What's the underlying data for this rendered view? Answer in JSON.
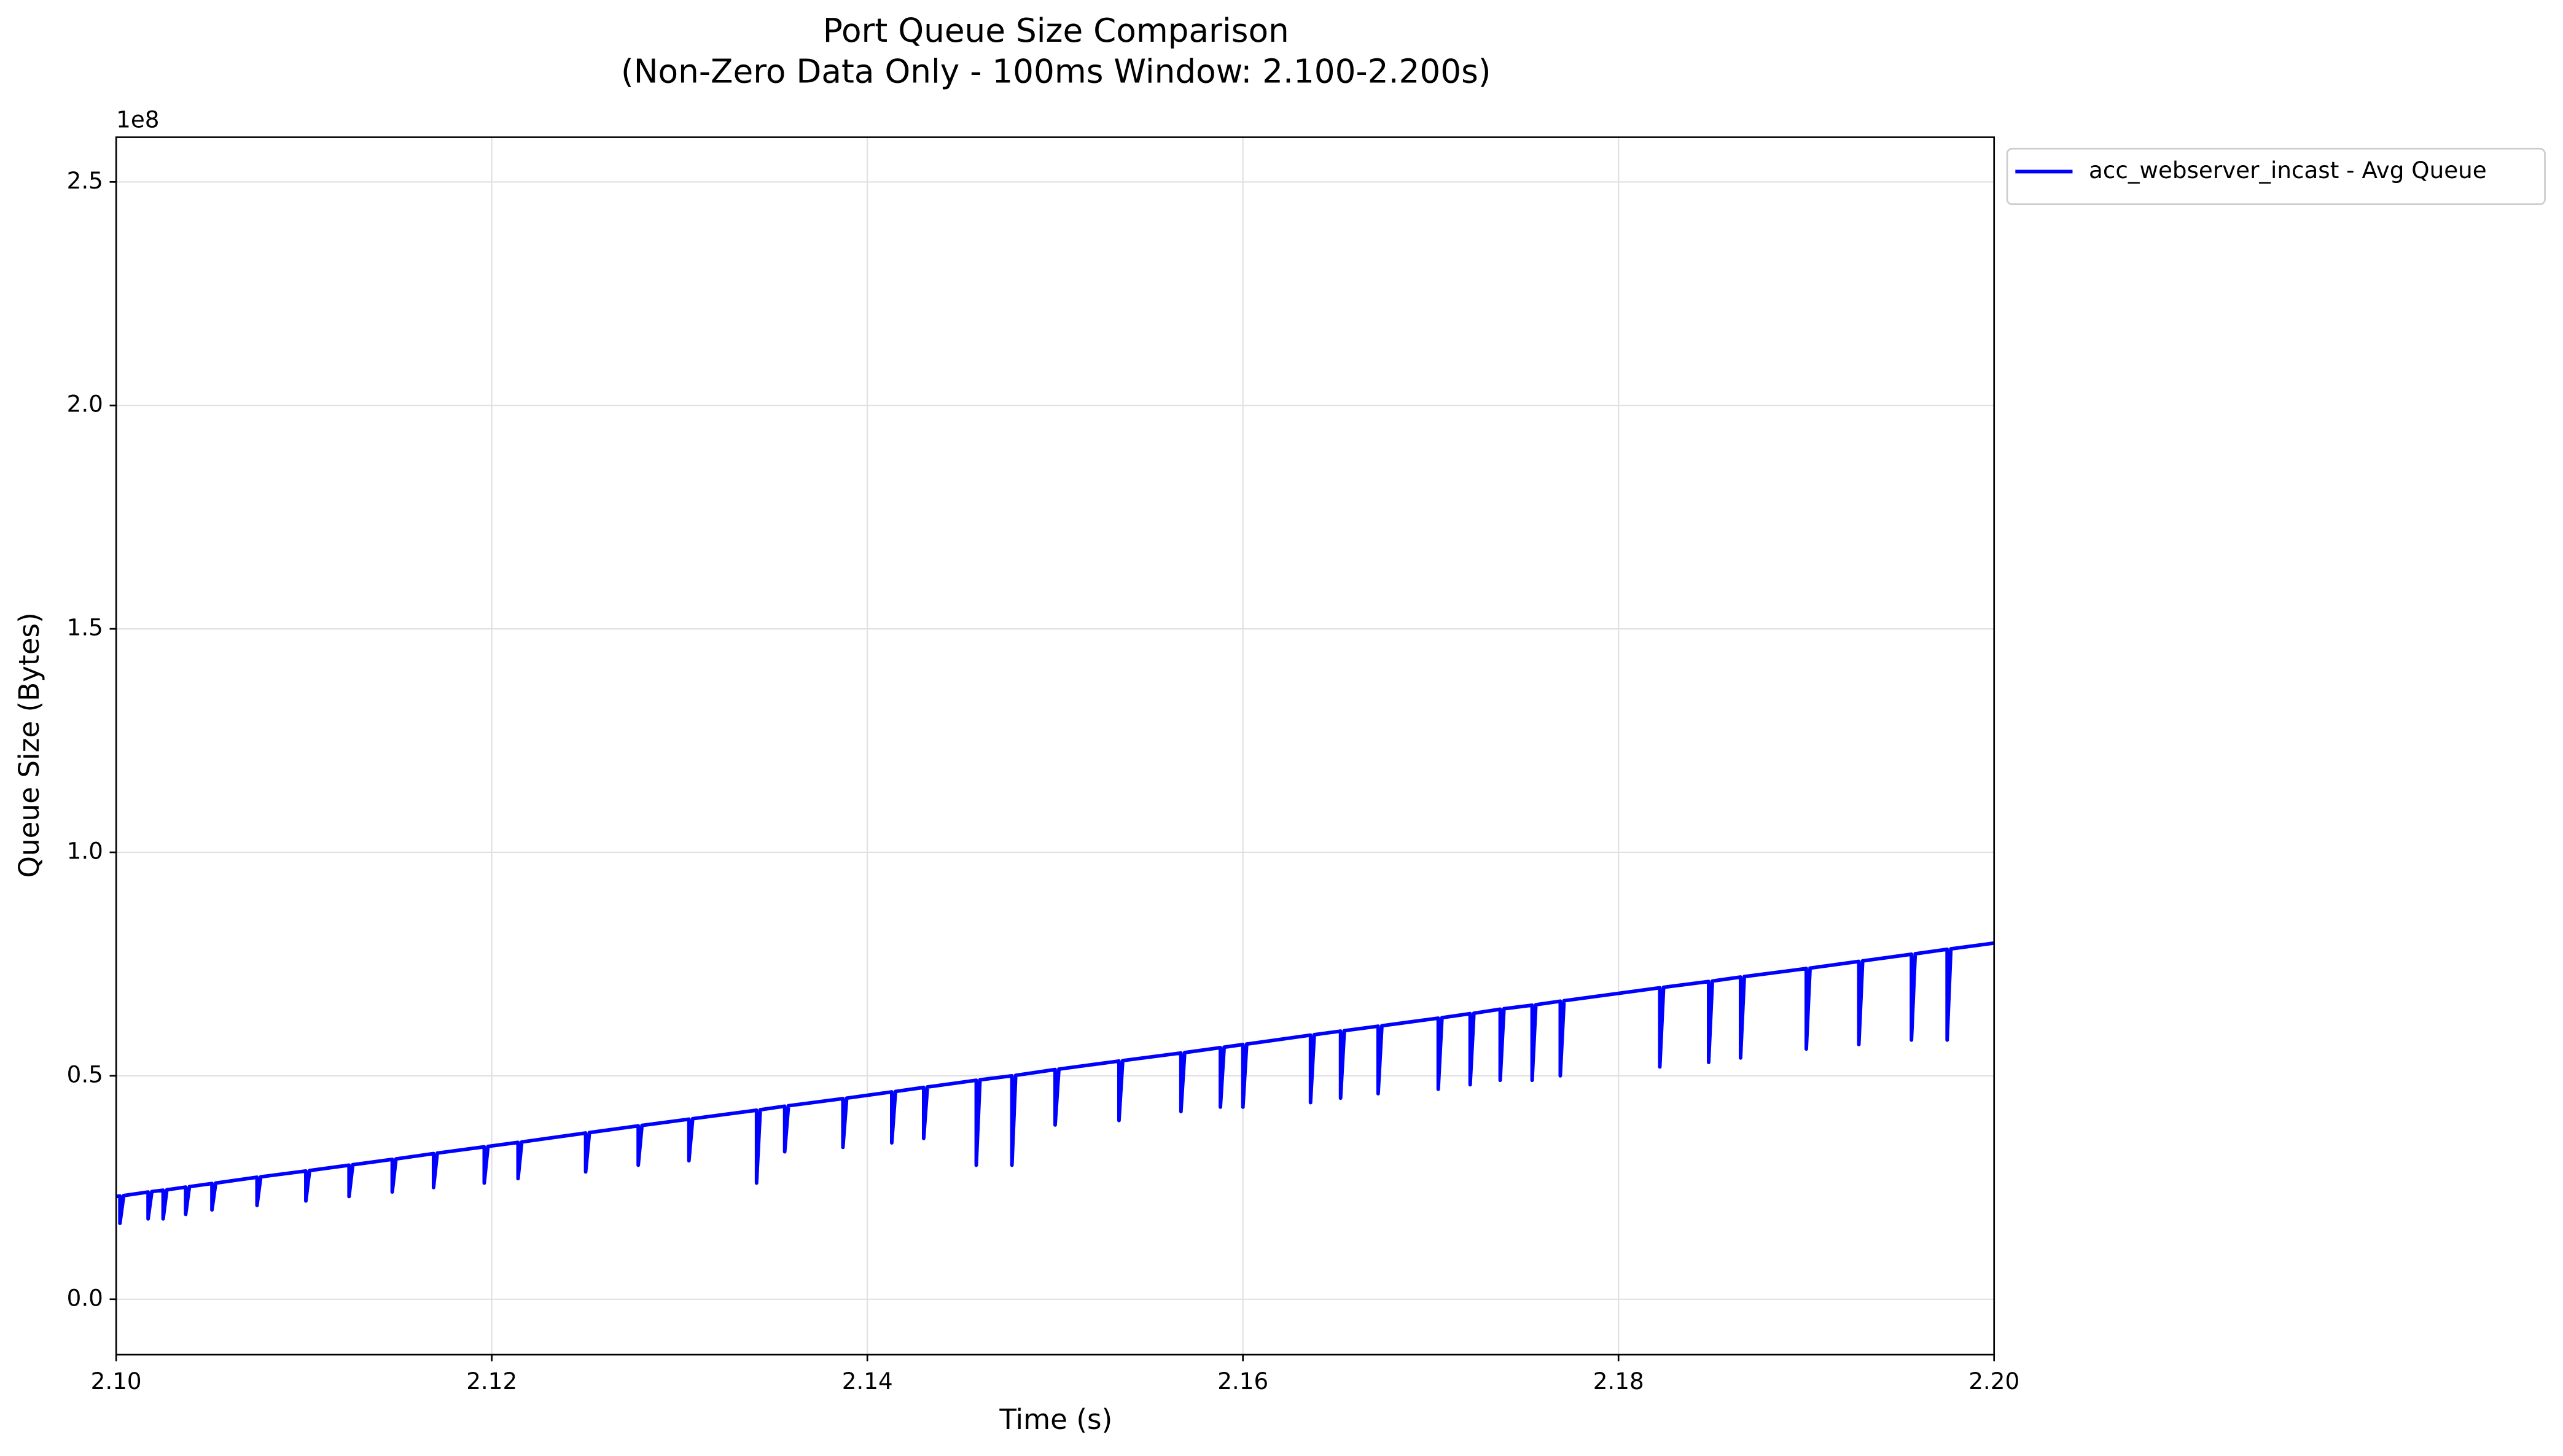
{
  "chart_data": {
    "type": "line",
    "title": "Port Queue Size Comparison",
    "subtitle": "(Non-Zero Data Only - 100ms Window: 2.100-2.200s)",
    "x_label": "Time (s)",
    "y_label": "Queue Size (Bytes)",
    "y_offset_label": "1e8",
    "xlim": [
      2.1,
      2.2
    ],
    "xticks": [
      {
        "value": 2.1,
        "label": "2.10"
      },
      2.12,
      2.14,
      2.16,
      2.18,
      {
        "value": 2.2,
        "label": "2.20"
      }
    ],
    "ylim": [
      -12400000,
      260000000
    ],
    "yticks": [
      {
        "value": 0,
        "label": "0.0"
      },
      {
        "value": 50000000,
        "label": "0.5"
      },
      {
        "value": 100000000,
        "label": "1.0"
      },
      {
        "value": 150000000,
        "label": "1.5"
      },
      {
        "value": 200000000,
        "label": "2.0"
      },
      {
        "value": 250000000,
        "label": "2.5"
      }
    ],
    "grid": true,
    "legend": "outside-right",
    "x": [
      2.1,
      2.1002,
      2.1002,
      2.1004,
      2.1017,
      2.1017,
      2.1019,
      2.1025,
      2.1025,
      2.1027,
      2.1037,
      2.1037,
      2.1039,
      2.1051,
      2.1051,
      2.1053,
      2.1075,
      2.1075,
      2.1077,
      2.1101,
      2.1101,
      2.1103,
      2.1124,
      2.1124,
      2.1126,
      2.1147,
      2.1147,
      2.1149,
      2.1169,
      2.1169,
      2.1171,
      2.1196,
      2.1196,
      2.1198,
      2.1214,
      2.1214,
      2.1216,
      2.125,
      2.125,
      2.1252,
      2.1278,
      2.1278,
      2.128,
      2.1305,
      2.1305,
      2.1307,
      2.1341,
      2.1341,
      2.1343,
      2.1356,
      2.1356,
      2.1358,
      2.1387,
      2.1387,
      2.1389,
      2.1413,
      2.1413,
      2.1415,
      2.143,
      2.143,
      2.1432,
      2.1458,
      2.1458,
      2.146,
      2.1477,
      2.1477,
      2.1479,
      2.15,
      2.15,
      2.1502,
      2.1534,
      2.1534,
      2.1536,
      2.1567,
      2.1567,
      2.1569,
      2.1588,
      2.1588,
      2.159,
      2.16,
      2.16,
      2.1602,
      2.1636,
      2.1636,
      2.1638,
      2.1652,
      2.1652,
      2.1654,
      2.1672,
      2.1672,
      2.1674,
      2.1704,
      2.1704,
      2.1706,
      2.1721,
      2.1721,
      2.1723,
      2.1737,
      2.1737,
      2.1739,
      2.1754,
      2.1754,
      2.1756,
      2.1769,
      2.1769,
      2.1771,
      2.1822,
      2.1822,
      2.1824,
      2.1848,
      2.1848,
      2.185,
      2.1865,
      2.1865,
      2.1867,
      2.19,
      2.19,
      2.1902,
      2.1928,
      2.1928,
      2.193,
      2.1956,
      2.1956,
      2.1958,
      2.1975,
      2.1975,
      2.1977,
      2.2
    ],
    "series": [
      {
        "name": "acc_webserver_incast - Avg Queue",
        "color": "#0000ff",
        "values": [
          23000000,
          23100000,
          17000000,
          23200000,
          24000000,
          18000000,
          24100000,
          24400000,
          18000000,
          24500000,
          25100000,
          19000000,
          25200000,
          25900000,
          20000000,
          26000000,
          27300000,
          21000000,
          27400000,
          28700000,
          22000000,
          28800000,
          30000000,
          23000000,
          30100000,
          31300000,
          24000000,
          31400000,
          32600000,
          25000000,
          32700000,
          34100000,
          26000000,
          34200000,
          35100000,
          27000000,
          35200000,
          37200000,
          28500000,
          37300000,
          38800000,
          30000000,
          38900000,
          40300000,
          31000000,
          40400000,
          42300000,
          26000000,
          42400000,
          43200000,
          33000000,
          43300000,
          44900000,
          34000000,
          45000000,
          46400000,
          35000000,
          46500000,
          47400000,
          36000000,
          47500000,
          49000000,
          30000000,
          49100000,
          50000000,
          30000000,
          50100000,
          51400000,
          39000000,
          51500000,
          53300000,
          40000000,
          53400000,
          55100000,
          42000000,
          55200000,
          56300000,
          43000000,
          56400000,
          57000000,
          43000000,
          57100000,
          59100000,
          44000000,
          59200000,
          60000000,
          45000000,
          60100000,
          61100000,
          46000000,
          61200000,
          62900000,
          47000000,
          63000000,
          63900000,
          48000000,
          64000000,
          64900000,
          49000000,
          65000000,
          65800000,
          49000000,
          65900000,
          66700000,
          50000000,
          66800000,
          69700000,
          52000000,
          69800000,
          71100000,
          53000000,
          71200000,
          72100000,
          54000000,
          72200000,
          74000000,
          56000000,
          74100000,
          75600000,
          57000000,
          75700000,
          77200000,
          58000000,
          77300000,
          78300000,
          58000000,
          78400000,
          79700000
        ]
      }
    ]
  }
}
